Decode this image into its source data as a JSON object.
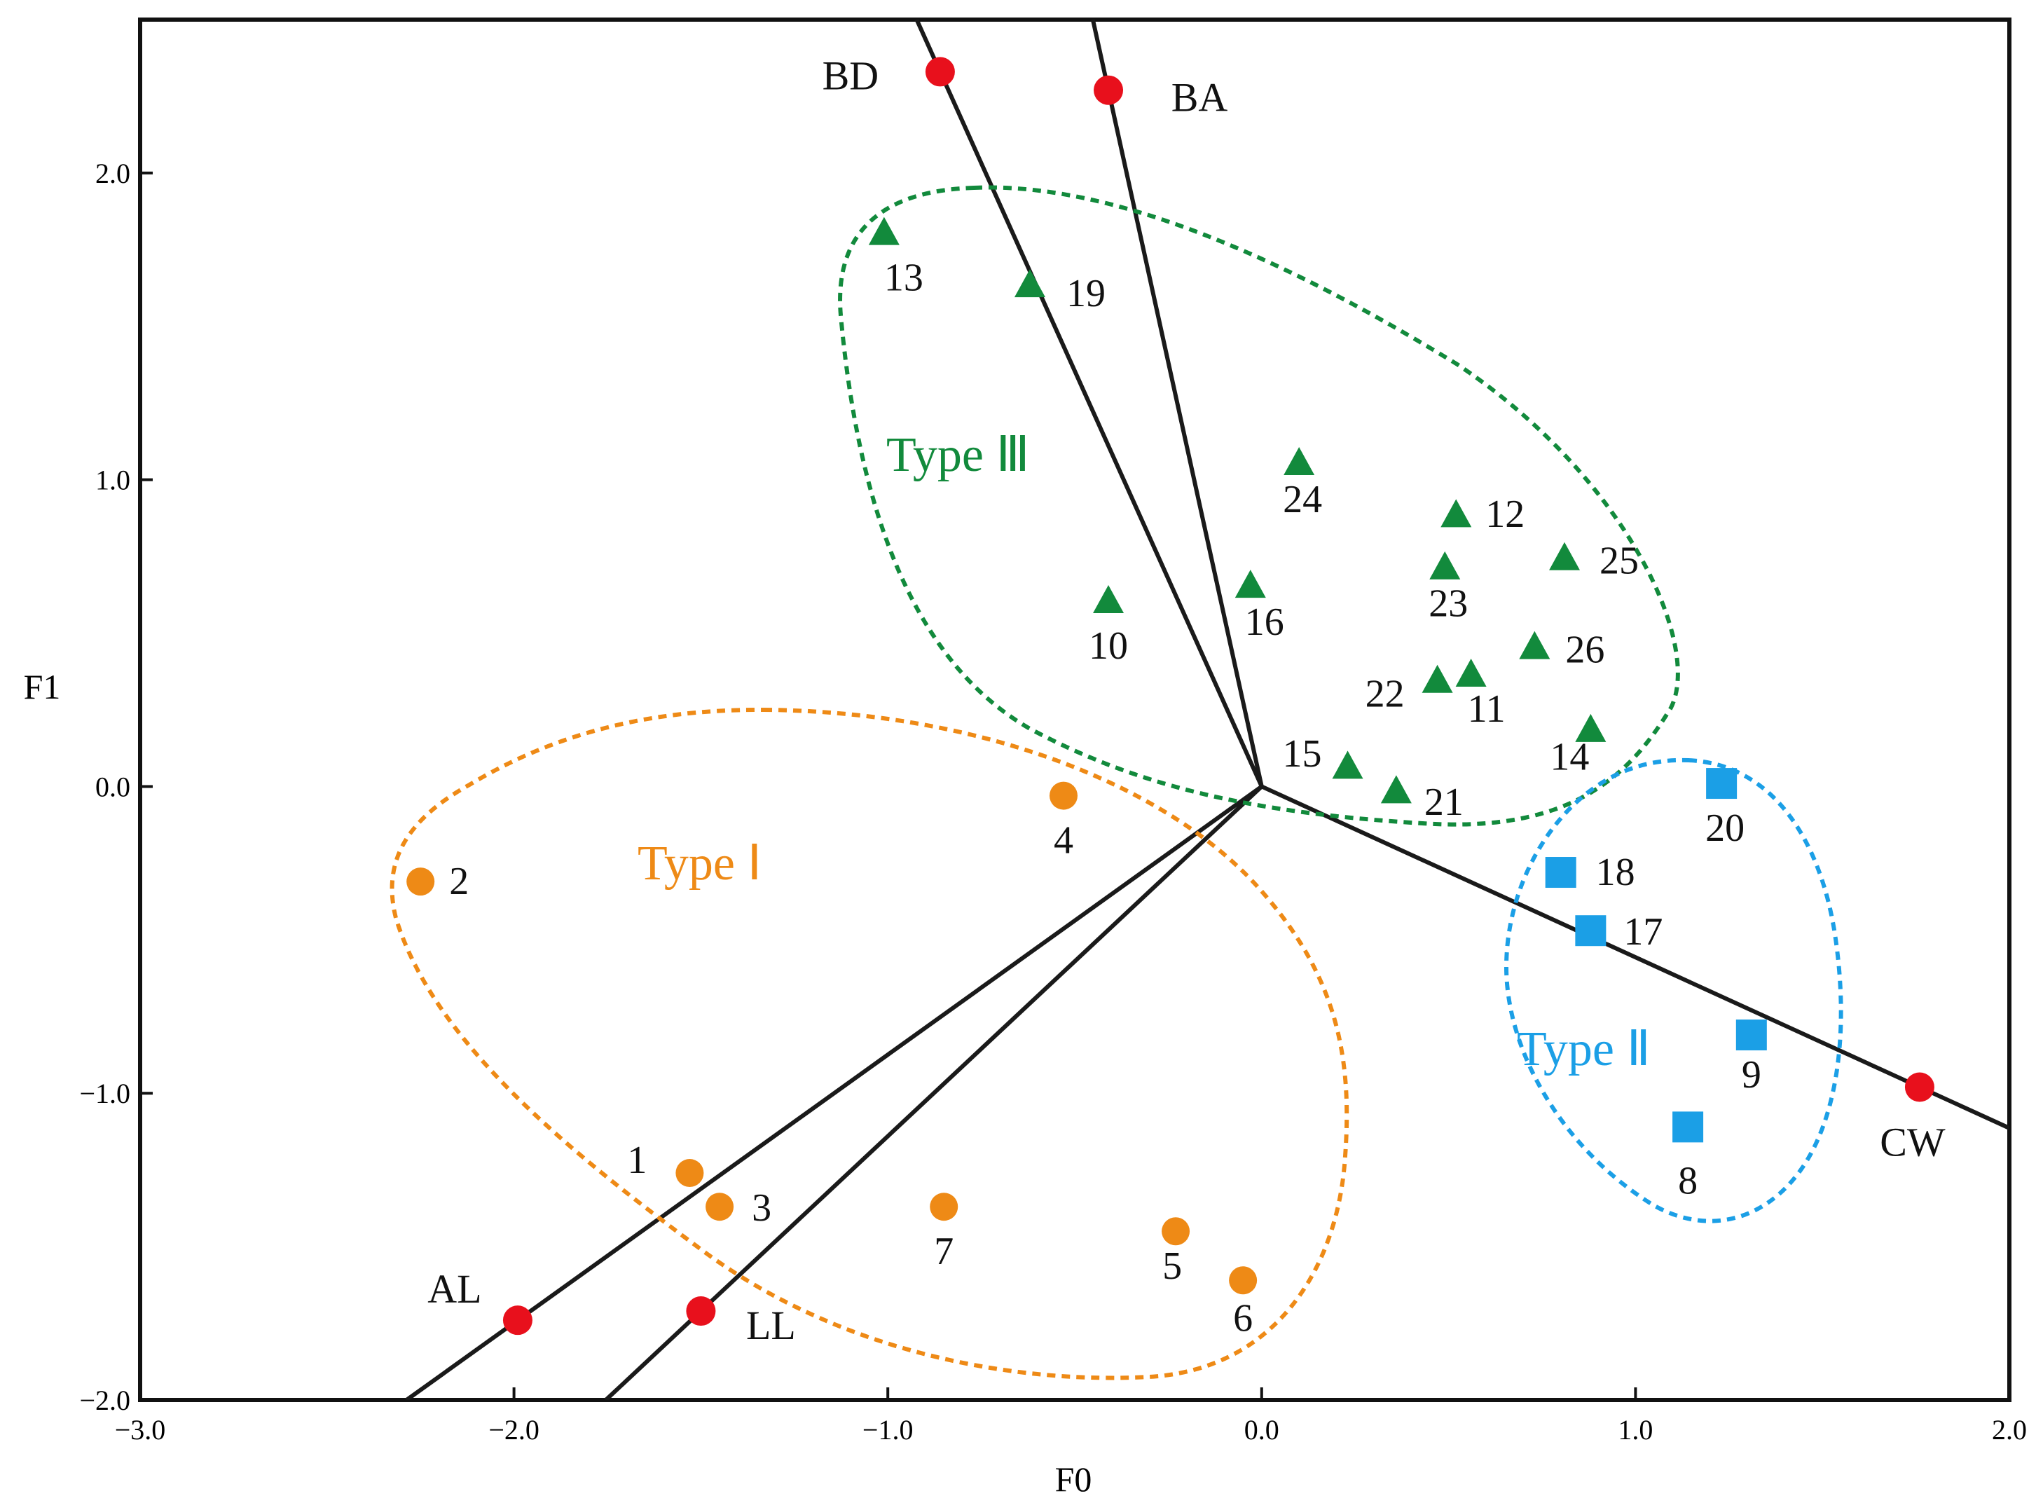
{
  "chart_data": {
    "type": "scatter",
    "xlabel": "F0",
    "ylabel": "F1",
    "xlim": [
      -3.0,
      2.0
    ],
    "ylim": [
      -2.0,
      2.5
    ],
    "x_ticks": [
      -3.0,
      -2.0,
      -1.0,
      0.0,
      1.0,
      2.0
    ],
    "x_tick_labels": [
      "−3.0",
      "−2.0",
      "−1.0",
      "0.0",
      "1.0",
      "2.0"
    ],
    "y_ticks": [
      -2.0,
      -1.0,
      0.0,
      1.0,
      2.0
    ],
    "y_tick_labels": [
      "−2.0",
      "−1.0",
      "0.0",
      "1.0",
      "2.0"
    ],
    "colors": {
      "type1": "#EE8A16",
      "type2": "#1B9FE6",
      "type3": "#128A3C",
      "endmember": "#E8101C",
      "line": "#1A1A1A"
    },
    "origin": {
      "x": 0.0,
      "y": 0.0
    },
    "endmembers": [
      {
        "name": "BD",
        "x": -0.86,
        "y": 2.33
      },
      {
        "name": "BA",
        "x": -0.41,
        "y": 2.27
      },
      {
        "name": "CW",
        "x": 1.76,
        "y": -0.98
      },
      {
        "name": "AL",
        "x": -1.99,
        "y": -1.74
      },
      {
        "name": "LL",
        "x": -1.5,
        "y": -1.71
      }
    ],
    "series": [
      {
        "name": "Type Ⅰ",
        "marker": "circle",
        "points": [
          {
            "label": "1",
            "x": -1.53,
            "y": -1.26
          },
          {
            "label": "2",
            "x": -2.25,
            "y": -0.31
          },
          {
            "label": "3",
            "x": -1.45,
            "y": -1.37
          },
          {
            "label": "4",
            "x": -0.53,
            "y": -0.03
          },
          {
            "label": "5",
            "x": -0.23,
            "y": -1.45
          },
          {
            "label": "6",
            "x": -0.05,
            "y": -1.61
          },
          {
            "label": "7",
            "x": -0.85,
            "y": -1.37
          }
        ]
      },
      {
        "name": "Type Ⅱ",
        "marker": "square",
        "points": [
          {
            "label": "8",
            "x": 1.14,
            "y": -1.11
          },
          {
            "label": "9",
            "x": 1.31,
            "y": -0.81
          },
          {
            "label": "17",
            "x": 0.88,
            "y": -0.47
          },
          {
            "label": "18",
            "x": 0.8,
            "y": -0.28
          },
          {
            "label": "20",
            "x": 1.23,
            "y": 0.01
          }
        ]
      },
      {
        "name": "Type Ⅲ",
        "marker": "triangle",
        "points": [
          {
            "label": "10",
            "x": -0.41,
            "y": 0.6
          },
          {
            "label": "11",
            "x": 0.56,
            "y": 0.36
          },
          {
            "label": "12",
            "x": 0.52,
            "y": 0.88
          },
          {
            "label": "13",
            "x": -1.01,
            "y": 1.8
          },
          {
            "label": "14",
            "x": 0.88,
            "y": 0.18
          },
          {
            "label": "15",
            "x": 0.23,
            "y": 0.06
          },
          {
            "label": "16",
            "x": -0.03,
            "y": 0.65
          },
          {
            "label": "19",
            "x": -0.62,
            "y": 1.63
          },
          {
            "label": "21",
            "x": 0.36,
            "y": -0.02
          },
          {
            "label": "22",
            "x": 0.47,
            "y": 0.34
          },
          {
            "label": "23",
            "x": 0.49,
            "y": 0.71
          },
          {
            "label": "24",
            "x": 0.1,
            "y": 1.05
          },
          {
            "label": "25",
            "x": 0.81,
            "y": 0.74
          },
          {
            "label": "26",
            "x": 0.73,
            "y": 0.45
          }
        ]
      }
    ],
    "group_labels": [
      "Type Ⅰ",
      "Type Ⅱ",
      "Type Ⅲ"
    ]
  }
}
